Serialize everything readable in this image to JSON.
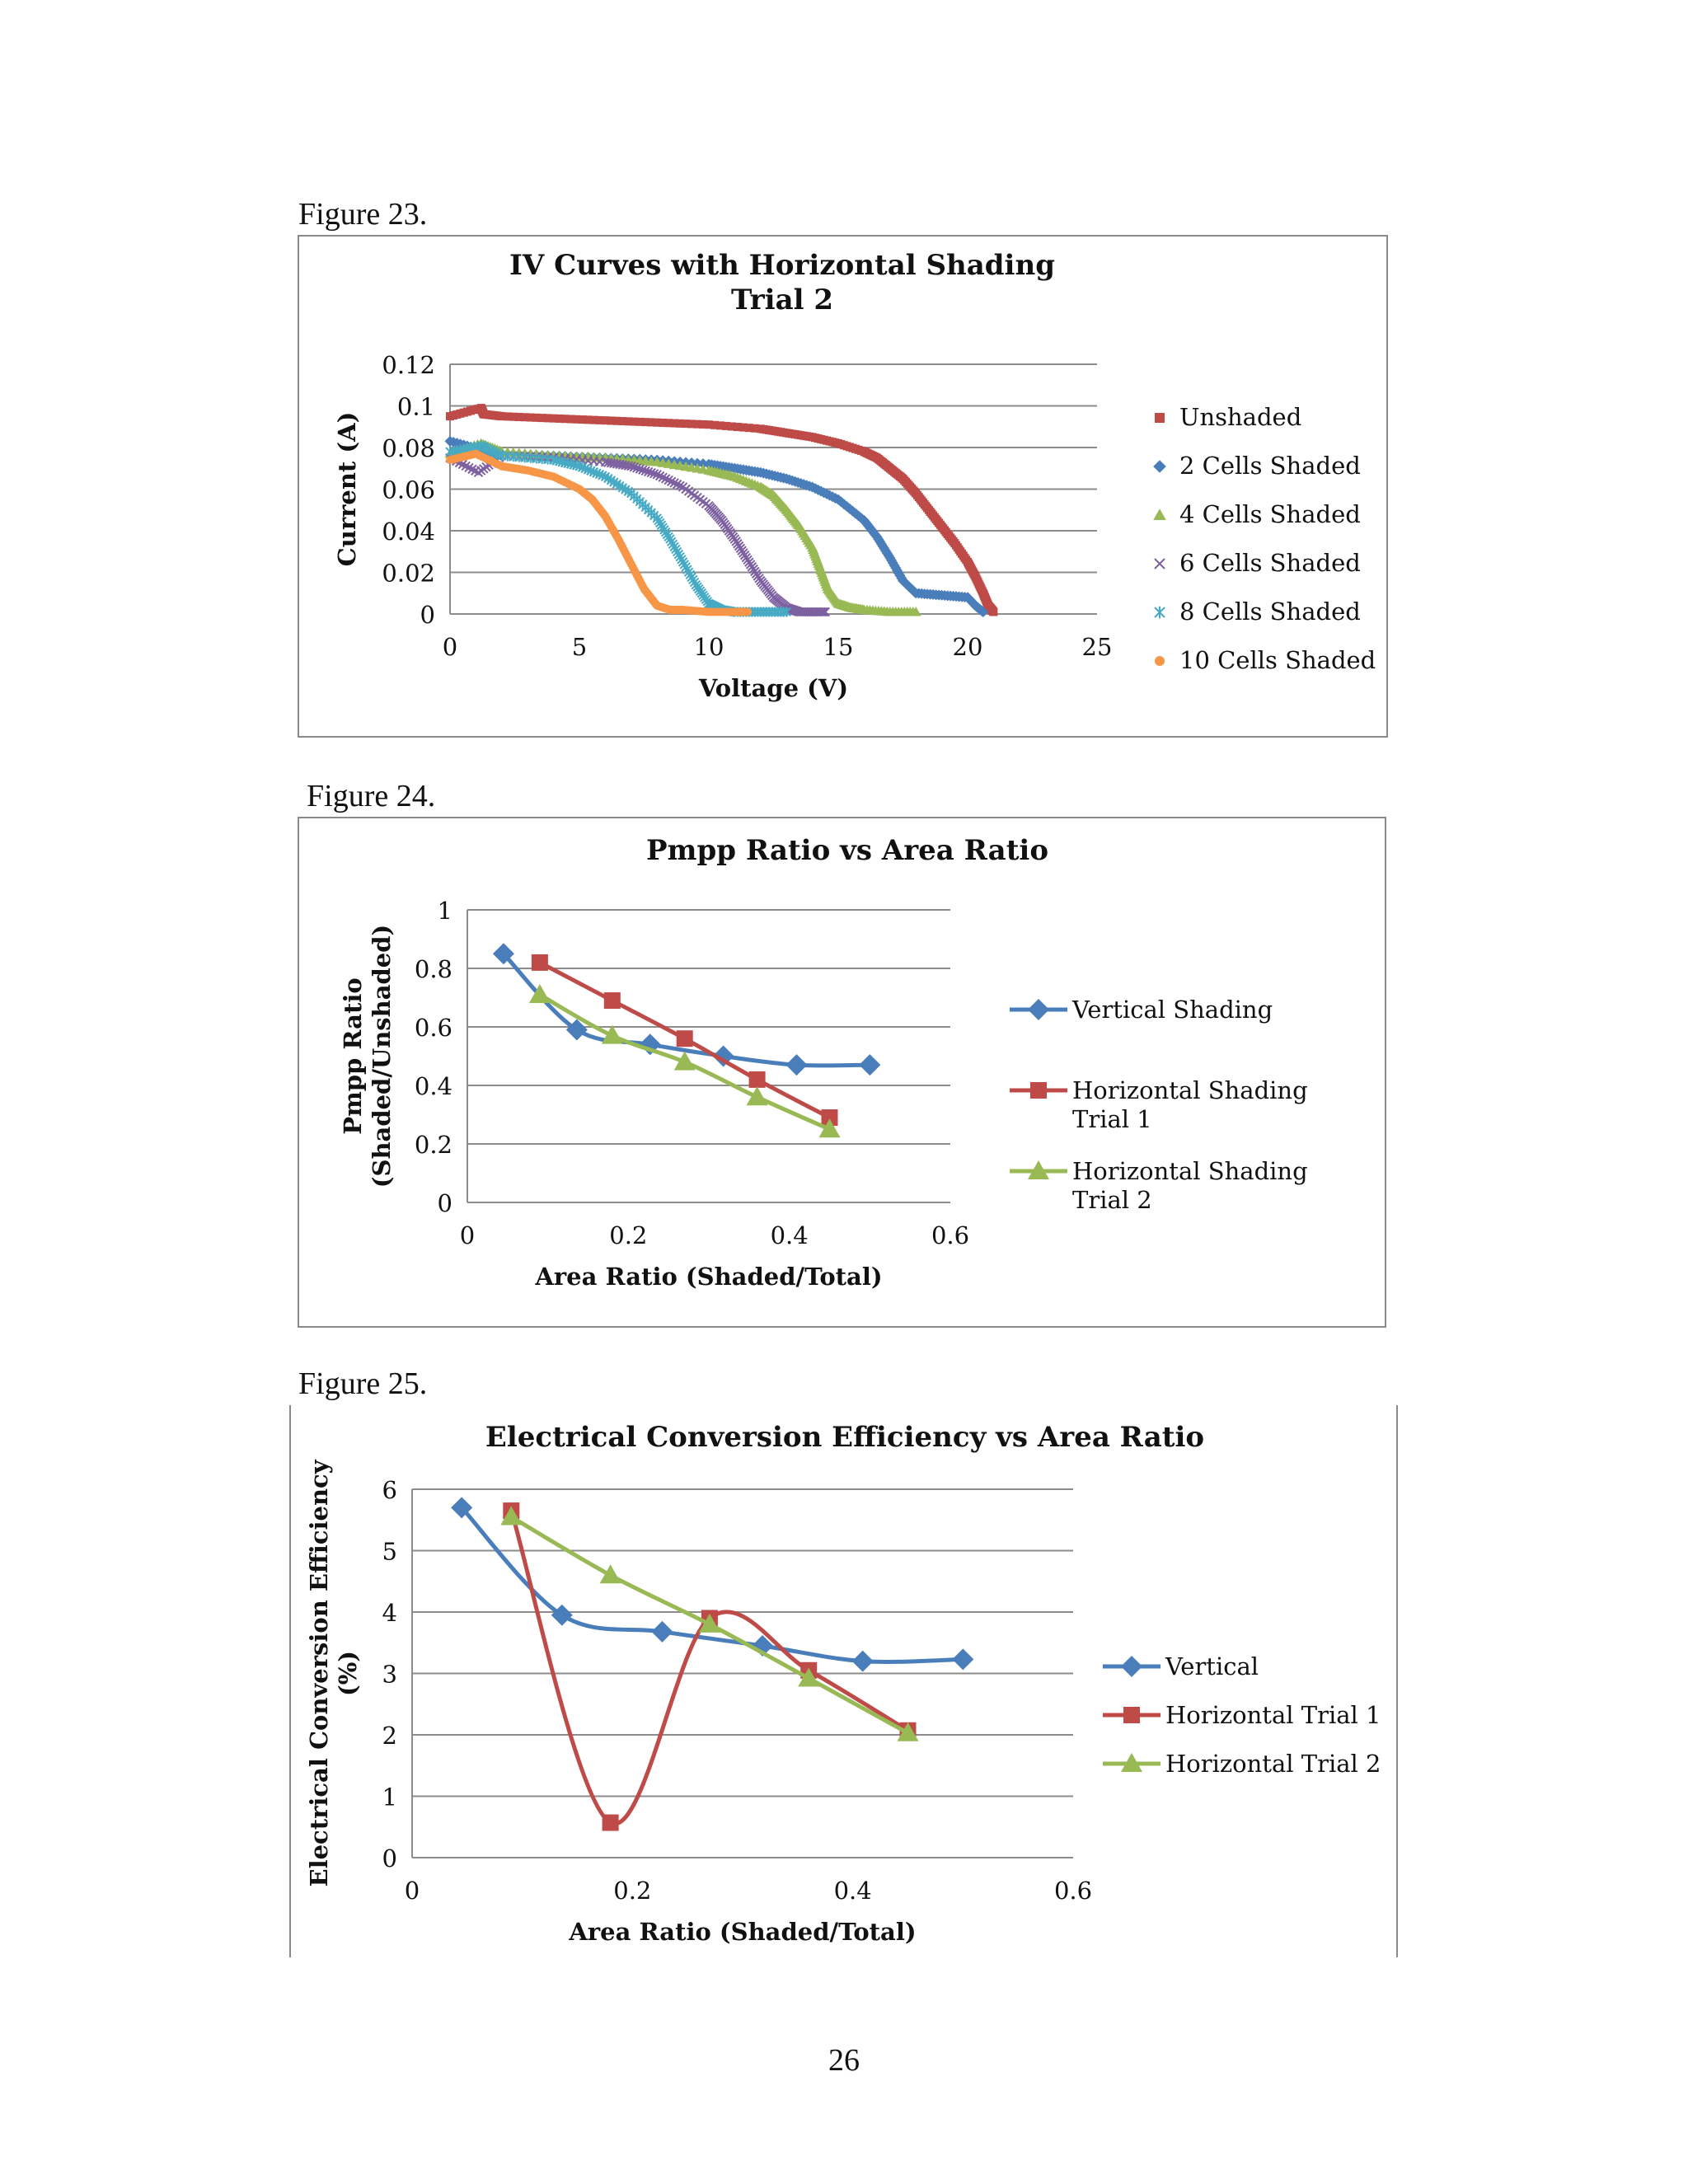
{
  "figures": [
    {
      "caption": "Figure  23."
    },
    {
      "caption": "Figure  24."
    },
    {
      "caption": "Figure  25."
    }
  ],
  "page_number": "26",
  "colors": {
    "blue": "#4a7ebb",
    "red": "#be4b48",
    "green": "#98b954",
    "purple": "#7d60a0",
    "teal": "#46aac5",
    "orange": "#f79646",
    "grid": "#8c8c8c"
  },
  "chart_data": [
    {
      "type": "scatter",
      "title": "IV Curves with Horizontal Shading",
      "subtitle": "Trial 2",
      "xlabel": "Voltage (V)",
      "ylabel": "Current (A)",
      "xlim": [
        0,
        25
      ],
      "ylim": [
        0,
        0.12
      ],
      "xticks": [
        "0",
        "5",
        "10",
        "15",
        "20",
        "25"
      ],
      "yticks": [
        "0",
        "0.02",
        "0.04",
        "0.06",
        "0.08",
        "0.1",
        "0.12"
      ],
      "grid": true,
      "legend": "right",
      "series": [
        {
          "name": "Unshaded",
          "marker": "square",
          "color": "#be4b48",
          "x": [
            0,
            1.2,
            1.3,
            2,
            4,
            6,
            8,
            10,
            12,
            13,
            14,
            15,
            16,
            16.5,
            17,
            17.5,
            18,
            18.5,
            19,
            19.5,
            20,
            20.3,
            20.6,
            20.8,
            21
          ],
          "y": [
            0.095,
            0.099,
            0.096,
            0.095,
            0.094,
            0.093,
            0.092,
            0.091,
            0.089,
            0.087,
            0.085,
            0.082,
            0.078,
            0.075,
            0.07,
            0.065,
            0.058,
            0.05,
            0.042,
            0.034,
            0.025,
            0.018,
            0.01,
            0.004,
            0.001
          ]
        },
        {
          "name": "2 Cells Shaded",
          "marker": "diamond",
          "color": "#4a7ebb",
          "x": [
            0,
            1.2,
            2,
            4,
            6,
            8,
            10,
            11,
            12,
            13,
            14,
            15,
            16,
            16.5,
            17,
            17.5,
            18,
            19,
            20,
            20.3,
            20.6
          ],
          "y": [
            0.083,
            0.079,
            0.077,
            0.076,
            0.075,
            0.074,
            0.072,
            0.07,
            0.068,
            0.065,
            0.061,
            0.055,
            0.045,
            0.037,
            0.027,
            0.016,
            0.01,
            0.009,
            0.008,
            0.004,
            0.001
          ]
        },
        {
          "name": "4 Cells Shaded",
          "marker": "triangle",
          "color": "#98b954",
          "x": [
            0,
            1.2,
            2,
            4,
            6,
            8,
            10,
            11,
            12,
            12.5,
            13,
            13.5,
            14,
            14.3,
            14.6,
            15,
            15.5,
            16,
            17,
            18
          ],
          "y": [
            0.077,
            0.082,
            0.078,
            0.076,
            0.075,
            0.073,
            0.069,
            0.066,
            0.061,
            0.057,
            0.05,
            0.042,
            0.032,
            0.022,
            0.012,
            0.005,
            0.003,
            0.002,
            0.001,
            0.001
          ]
        },
        {
          "name": "6 Cells Shaded",
          "marker": "x",
          "color": "#7d60a0",
          "x": [
            0,
            1.1,
            2,
            4,
            6,
            7,
            8,
            9,
            10,
            10.5,
            11,
            11.5,
            12,
            12.5,
            13,
            13.5,
            14,
            14.5
          ],
          "y": [
            0.075,
            0.068,
            0.076,
            0.075,
            0.073,
            0.071,
            0.067,
            0.061,
            0.052,
            0.045,
            0.036,
            0.026,
            0.016,
            0.008,
            0.003,
            0.001,
            0.001,
            0.001
          ]
        },
        {
          "name": "8 Cells Shaded",
          "marker": "star",
          "color": "#46aac5",
          "x": [
            0,
            1.2,
            2,
            4,
            5,
            6,
            7,
            8,
            8.5,
            9,
            9.5,
            10,
            10.5,
            11,
            12,
            13
          ],
          "y": [
            0.078,
            0.081,
            0.076,
            0.074,
            0.071,
            0.066,
            0.058,
            0.046,
            0.036,
            0.025,
            0.014,
            0.005,
            0.002,
            0.001,
            0.001,
            0.001
          ]
        },
        {
          "name": "10 Cells Shaded",
          "marker": "circle",
          "color": "#f79646",
          "x": [
            0,
            1,
            2,
            3,
            4,
            5,
            5.5,
            6,
            6.5,
            7,
            7.5,
            8,
            8.5,
            9,
            10,
            11,
            11.5
          ],
          "y": [
            0.074,
            0.077,
            0.071,
            0.069,
            0.066,
            0.06,
            0.055,
            0.047,
            0.036,
            0.024,
            0.012,
            0.004,
            0.002,
            0.002,
            0.001,
            0.001,
            0.001
          ]
        }
      ]
    },
    {
      "type": "line",
      "title": "Pmpp Ratio vs Area Ratio",
      "xlabel": "Area Ratio (Shaded/Total)",
      "ylabel": "Pmpp Ratio",
      "ylabel2": "(Shaded/Unshaded)",
      "xlim": [
        0,
        0.6
      ],
      "ylim": [
        0,
        1
      ],
      "xticks": [
        "0",
        "0.2",
        "0.4",
        "0.6"
      ],
      "yticks": [
        "0",
        "0.2",
        "0.4",
        "0.6",
        "0.8",
        "1"
      ],
      "grid": true,
      "legend": "right",
      "series": [
        {
          "name": "Vertical Shading",
          "marker": "diamond",
          "color": "#4a7ebb",
          "x": [
            0.045,
            0.136,
            0.227,
            0.318,
            0.409,
            0.5
          ],
          "y": [
            0.85,
            0.59,
            0.54,
            0.5,
            0.47,
            0.47
          ]
        },
        {
          "name": "Horizontal Shading Trial 1",
          "marker": "square",
          "color": "#be4b48",
          "x": [
            0.09,
            0.18,
            0.27,
            0.36,
            0.45
          ],
          "y": [
            0.82,
            0.69,
            0.56,
            0.42,
            0.29
          ]
        },
        {
          "name": "Horizontal Shading Trial 2",
          "marker": "triangle",
          "color": "#98b954",
          "x": [
            0.09,
            0.18,
            0.27,
            0.36,
            0.45
          ],
          "y": [
            0.71,
            0.57,
            0.48,
            0.36,
            0.25
          ]
        }
      ]
    },
    {
      "type": "line",
      "title": "Electrical Conversion Efficiency vs Area Ratio",
      "xlabel": "Area Ratio (Shaded/Total)",
      "ylabel": "Electrical Conversion Efficiency",
      "ylabel2": "(%)",
      "xlim": [
        0,
        0.6
      ],
      "ylim": [
        0,
        6
      ],
      "xticks": [
        "0",
        "0.2",
        "0.4",
        "0.6"
      ],
      "yticks": [
        "0",
        "1",
        "2",
        "3",
        "4",
        "5",
        "6"
      ],
      "grid": true,
      "legend": "right",
      "series": [
        {
          "name": "Vertical",
          "marker": "diamond",
          "color": "#4a7ebb",
          "x": [
            0.045,
            0.136,
            0.227,
            0.318,
            0.409,
            0.5
          ],
          "y": [
            5.7,
            3.95,
            3.68,
            3.45,
            3.2,
            3.23
          ]
        },
        {
          "name": "Horizontal Trial 1",
          "marker": "square",
          "color": "#be4b48",
          "x": [
            0.09,
            0.18,
            0.27,
            0.36,
            0.45
          ],
          "y": [
            5.65,
            0.57,
            3.9,
            3.05,
            2.07
          ]
        },
        {
          "name": "Horizontal Trial 2",
          "marker": "triangle",
          "color": "#98b954",
          "x": [
            0.09,
            0.18,
            0.27,
            0.36,
            0.45
          ],
          "y": [
            5.55,
            4.6,
            3.8,
            2.92,
            2.03
          ]
        }
      ]
    }
  ]
}
